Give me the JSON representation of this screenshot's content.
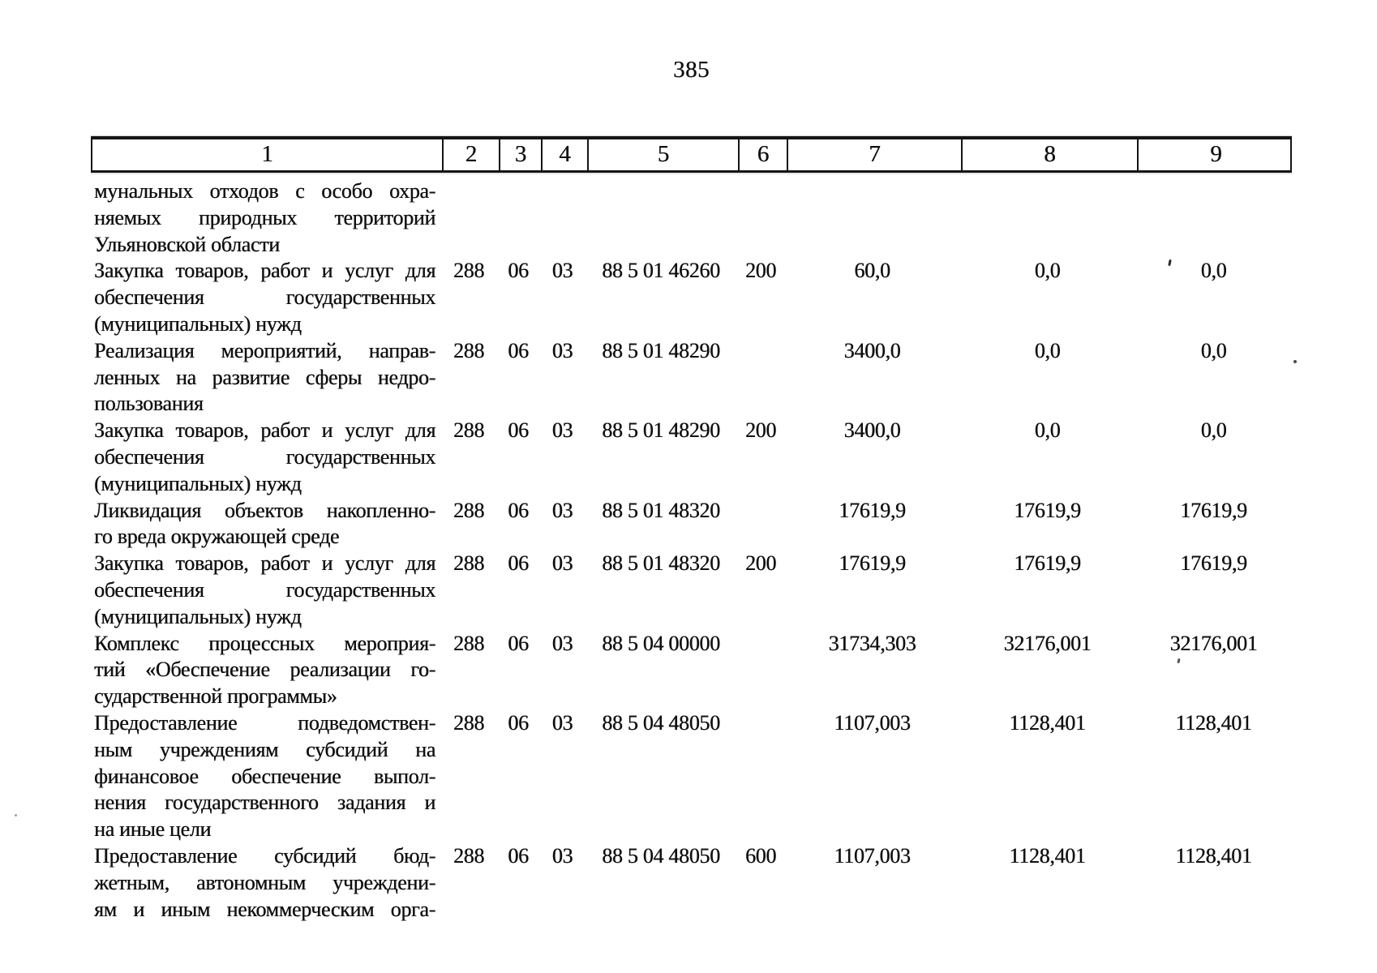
{
  "page": {
    "number": "385"
  },
  "table": {
    "column_headers": [
      "1",
      "2",
      "3",
      "4",
      "5",
      "6",
      "7",
      "8",
      "9"
    ],
    "rows": [
      {
        "name_lines": [
          "мунальных отходов с особо охра-",
          "няемых природных территорий",
          "Ульяновской области"
        ],
        "c2": "",
        "c3": "",
        "c4": "",
        "c5": "",
        "c6": "",
        "c7": "",
        "c8": "",
        "c9": ""
      },
      {
        "name_lines": [
          "Закупка товаров, работ и услуг для",
          "обеспечения государственных",
          "(муниципальных) нужд"
        ],
        "c2": "288",
        "c3": "06",
        "c4": "03",
        "c5": "88 5 01 46260",
        "c6": "200",
        "c7": "60,0",
        "c8": "0,0",
        "c9": "0,0"
      },
      {
        "name_lines": [
          "Реализация мероприятий, направ-",
          "ленных на развитие сферы недро-",
          "пользования"
        ],
        "c2": "288",
        "c3": "06",
        "c4": "03",
        "c5": "88 5 01 48290",
        "c6": "",
        "c7": "3400,0",
        "c8": "0,0",
        "c9": "0,0"
      },
      {
        "name_lines": [
          "Закупка товаров, работ и услуг для",
          "обеспечения государственных",
          "(муниципальных) нужд"
        ],
        "c2": "288",
        "c3": "06",
        "c4": "03",
        "c5": "88 5 01 48290",
        "c6": "200",
        "c7": "3400,0",
        "c8": "0,0",
        "c9": "0,0"
      },
      {
        "name_lines": [
          "Ликвидация объектов накопленно-",
          "го вреда окружающей среде"
        ],
        "c2": "288",
        "c3": "06",
        "c4": "03",
        "c5": "88 5 01 48320",
        "c6": "",
        "c7": "17619,9",
        "c8": "17619,9",
        "c9": "17619,9"
      },
      {
        "name_lines": [
          "Закупка товаров, работ и услуг для",
          "обеспечения государственных",
          "(муниципальных) нужд"
        ],
        "c2": "288",
        "c3": "06",
        "c4": "03",
        "c5": "88 5 01 48320",
        "c6": "200",
        "c7": "17619,9",
        "c8": "17619,9",
        "c9": "17619,9"
      },
      {
        "name_lines": [
          "Комплекс процессных мероприя-",
          "тий «Обеспечение реализации го-",
          "сударственной программы»"
        ],
        "c2": "288",
        "c3": "06",
        "c4": "03",
        "c5": "88 5 04 00000",
        "c6": "",
        "c7": "31734,303",
        "c8": "32176,001",
        "c9": "32176,001"
      },
      {
        "name_lines": [
          "Предоставление подведомствен-",
          "ным учреждениям субсидий на",
          "финансовое обеспечение выпол-",
          "нения государственного задания и",
          "на иные цели"
        ],
        "c2": "288",
        "c3": "06",
        "c4": "03",
        "c5": "88 5 04 48050",
        "c6": "",
        "c7": "1107,003",
        "c8": "1128,401",
        "c9": "1128,401"
      },
      {
        "name_lines": [
          "Предоставление субсидий бюд-",
          "жетным, автономным учреждени-",
          "ям и иным некоммерческим орга-"
        ],
        "c2": "288",
        "c3": "06",
        "c4": "03",
        "c5": "88 5 04 48050",
        "c6": "600",
        "c7": "1107,003",
        "c8": "1128,401",
        "c9": "1128,401",
        "justify_all_lines": true
      }
    ]
  }
}
